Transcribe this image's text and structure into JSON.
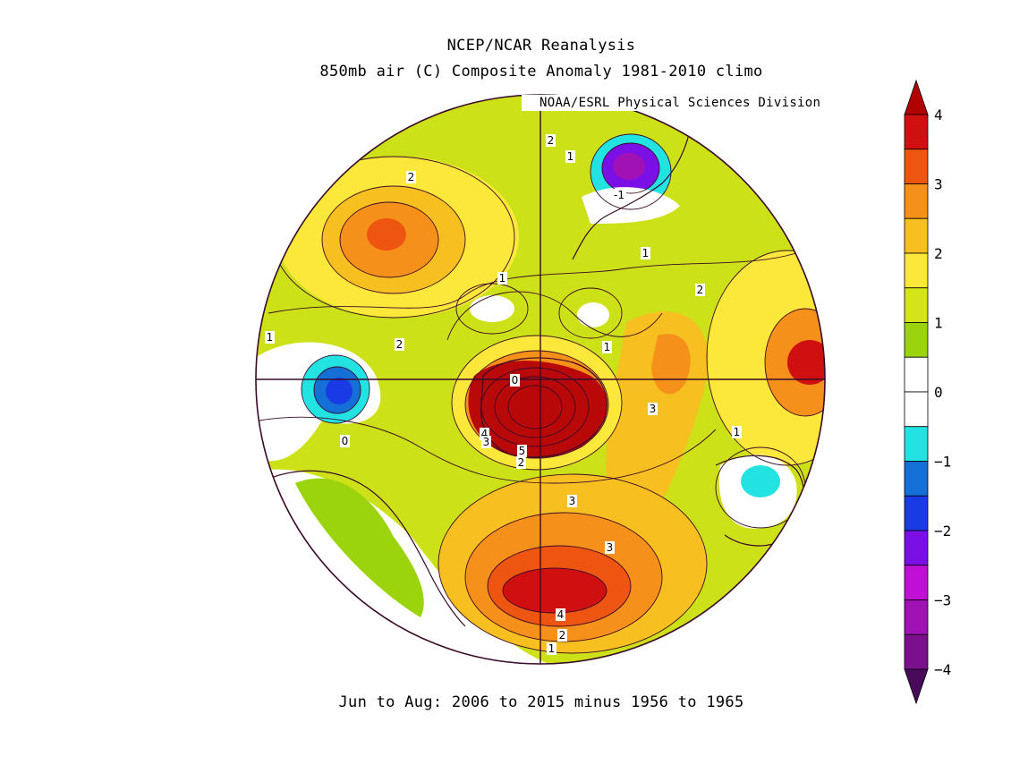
{
  "title_line1": "NCEP/NCAR Reanalysis",
  "title_line2": "850mb air (C) Composite Anomaly 1981-2010 climo",
  "credit": "NOAA/ESRL Physical Sciences Division",
  "footer": "Jun to Aug: 2006 to 2015 minus 1956 to 1965",
  "colorbar": {
    "ticks": [
      "4",
      "3",
      "2",
      "1",
      "0",
      "-1",
      "-2",
      "-3",
      "-4"
    ],
    "tick_values": [
      4,
      3,
      2,
      1,
      0,
      -1,
      -2,
      -3,
      -4
    ],
    "colors_top_to_bottom": [
      "#d01010",
      "#ee5511",
      "#f5901a",
      "#f7c020",
      "#fbe83a",
      "#d5e31a",
      "#9bd40c",
      "#ffffff",
      "#ffffff",
      "#22e2e2",
      "#1470d6",
      "#1a3ae6",
      "#7b10e6",
      "#c010d6",
      "#a012b4",
      "#7a108c"
    ],
    "end_top_color": "#b00000",
    "end_bottom_color": "#4a0a5a"
  },
  "contour_labels": [
    "2",
    "1",
    "2",
    "1",
    "1",
    "1",
    "2",
    "-1",
    "0",
    "1",
    "2",
    "3",
    "1",
    "0",
    "4",
    "3",
    "5",
    "2",
    "3",
    "3",
    "4",
    "2",
    "1"
  ],
  "colors": {
    "background": "#ffffff",
    "contour": "#3a0a2a",
    "axis": "#3a0a2a"
  }
}
